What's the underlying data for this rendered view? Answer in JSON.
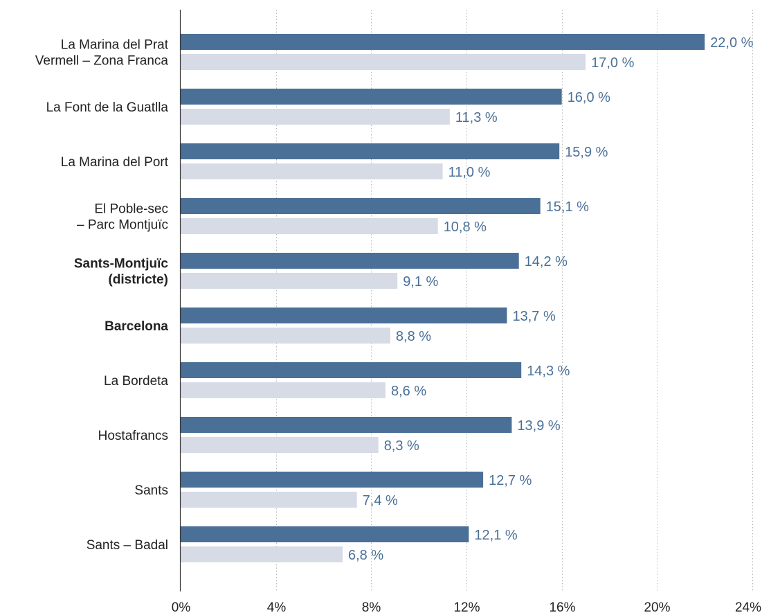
{
  "chart_data": {
    "type": "bar",
    "orientation": "horizontal",
    "title": "",
    "xlabel": "",
    "ylabel": "",
    "xlim": [
      0,
      24
    ],
    "ticks": [
      "0%",
      "4%",
      "8%",
      "12%",
      "16%",
      "20%",
      "24%"
    ],
    "tick_values": [
      0,
      4,
      8,
      12,
      16,
      20,
      24
    ],
    "grid": "vertical-dotted",
    "legend": "none",
    "colors": {
      "series1": "#4a7098",
      "series2": "#d6dbe6",
      "value_label": "#4a7098"
    },
    "categories": [
      {
        "lines": [
          "La Marina del Prat",
          "Vermell – Zona Franca"
        ],
        "bold": false
      },
      {
        "lines": [
          "La Font de la Guatlla"
        ],
        "bold": false
      },
      {
        "lines": [
          "La Marina del Port"
        ],
        "bold": false
      },
      {
        "lines": [
          "El Poble-sec",
          "– Parc Montjuïc"
        ],
        "bold": false
      },
      {
        "lines": [
          "Sants-Montjuïc",
          "(districte)"
        ],
        "bold": true
      },
      {
        "lines": [
          "Barcelona"
        ],
        "bold": true
      },
      {
        "lines": [
          "La Bordeta"
        ],
        "bold": false
      },
      {
        "lines": [
          "Hostafrancs"
        ],
        "bold": false
      },
      {
        "lines": [
          "Sants"
        ],
        "bold": false
      },
      {
        "lines": [
          "Sants – Badal"
        ],
        "bold": false
      }
    ],
    "series": [
      {
        "values": [
          22.0,
          16.0,
          15.9,
          15.1,
          14.2,
          13.7,
          14.3,
          13.9,
          12.7,
          12.1
        ],
        "labels": [
          "22,0 %",
          "16,0 %",
          "15,9 %",
          "15,1 %",
          "14,2 %",
          "13,7 %",
          "14,3 %",
          "13,9 %",
          "12,7 %",
          "12,1 %"
        ]
      },
      {
        "values": [
          17.0,
          11.3,
          11.0,
          10.8,
          9.1,
          8.8,
          8.6,
          8.3,
          7.4,
          6.8
        ],
        "labels": [
          "17,0 %",
          "11,3 %",
          "11,0 %",
          "10,8 %",
          "9,1 %",
          "8,8 %",
          "8,6 %",
          "8,3 %",
          "7,4 %",
          "6,8 %"
        ]
      }
    ]
  }
}
